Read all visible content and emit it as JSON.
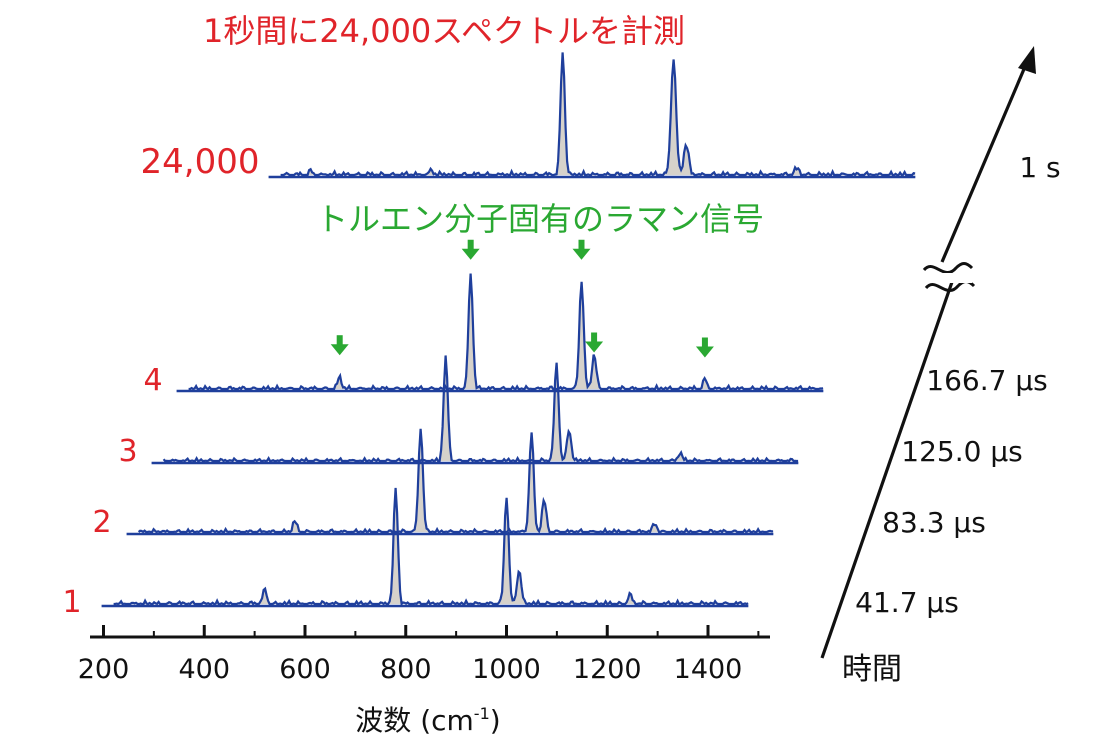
{
  "chart_data": {
    "type": "line",
    "title": "1秒間に24,000スペクトルを計測",
    "annotation": "トルエン分子固有のラマン信号",
    "xlabel": "波数 (cm⁻¹)",
    "xlabel_parts": {
      "main": "波数 (cm",
      "sup": "-1",
      "close": ")"
    },
    "x_ticks": [
      "200",
      "400",
      "600",
      "800",
      "1000",
      "1200",
      "1400"
    ],
    "x_tick_values": [
      200,
      400,
      600,
      800,
      1000,
      1200,
      1400
    ],
    "xlim": [
      200,
      1520
    ],
    "time_axis_label": "時間",
    "fill_color": "#d6d2cb",
    "line_color": "#1f3f9c",
    "label_color": "#e0242a",
    "annotation_color": "#2aa832",
    "series": [
      {
        "name": "1",
        "time": "41.7 µs",
        "x": [
          200,
          520,
          780,
          1000,
          1025,
          1245
        ],
        "y": [
          0.05,
          0.12,
          1.0,
          0.95,
          0.3,
          0.08
        ]
      },
      {
        "name": "2",
        "time": "83.3 µs",
        "x": [
          200,
          530,
          780,
          1000,
          1025,
          1245
        ],
        "y": [
          0.05,
          0.1,
          1.0,
          0.95,
          0.3,
          0.08
        ]
      },
      {
        "name": "3",
        "time": "125.0 µs",
        "x": [
          200,
          780,
          1000,
          1025,
          1245
        ],
        "y": [
          0.05,
          1.0,
          0.95,
          0.3,
          0.08
        ]
      },
      {
        "name": "4",
        "time": "166.7 µs",
        "x": [
          200,
          520,
          780,
          1000,
          1025,
          1245
        ],
        "y": [
          0.05,
          0.1,
          1.0,
          0.95,
          0.3,
          0.08
        ]
      },
      {
        "name": "24,000",
        "time": "1 s",
        "x": [
          280,
          520,
          780,
          1000,
          1025,
          1245
        ],
        "y": [
          0.03,
          0.04,
          1.0,
          0.95,
          0.25,
          0.05
        ]
      }
    ],
    "arrow_peaks": [
      520,
      780,
      1000,
      1025,
      1245
    ]
  }
}
